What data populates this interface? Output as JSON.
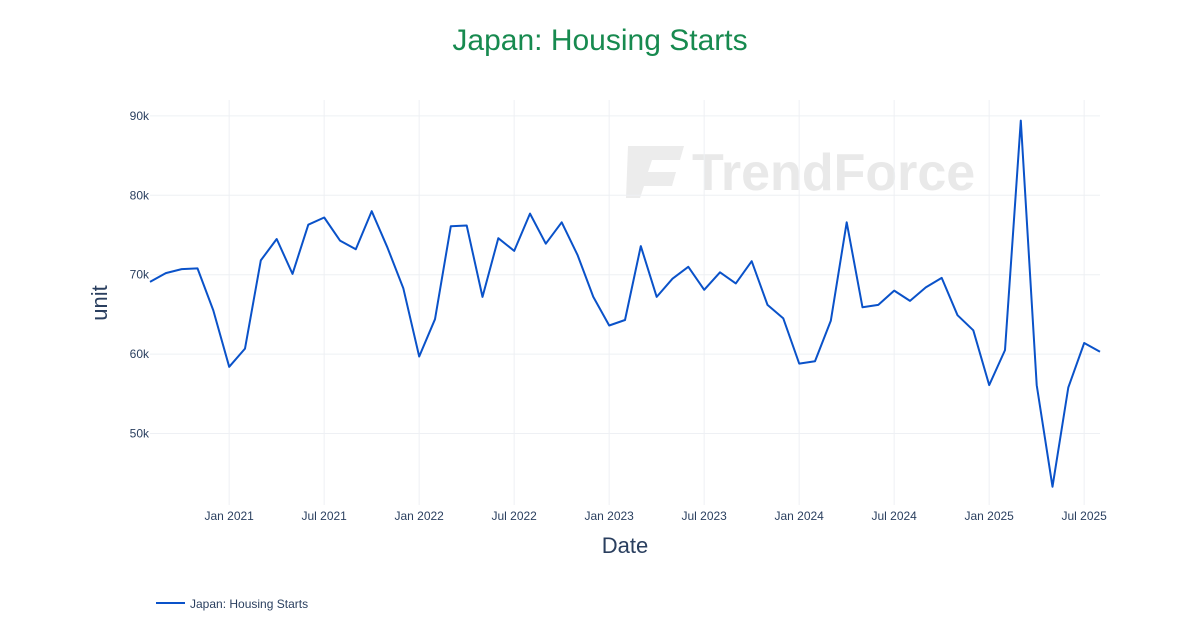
{
  "chart_data": {
    "type": "line",
    "title": "Japan: Housing Starts",
    "xlabel": "Date",
    "ylabel": "unit",
    "x_ticks": [
      "Jan 2021",
      "Jul 2021",
      "Jan 2022",
      "Jul 2022",
      "Jan 2023",
      "Jul 2023",
      "Jan 2024",
      "Jul 2024",
      "Jan 2025",
      "Jul 2025"
    ],
    "y_ticks": [
      {
        "value": 50000,
        "label": "50k"
      },
      {
        "value": 60000,
        "label": "60k"
      },
      {
        "value": 70000,
        "label": "70k"
      },
      {
        "value": 80000,
        "label": "80k"
      },
      {
        "value": 90000,
        "label": "90k"
      }
    ],
    "xlim": [
      "2020-08",
      "2025-08"
    ],
    "ylim": [
      41000,
      92000
    ],
    "grid": true,
    "legend_position": "bottom-left",
    "line_color": "#0a52c9",
    "watermark": "TrendForce",
    "series": [
      {
        "name": "Japan: Housing Starts",
        "x": [
          "2020-08",
          "2020-09",
          "2020-10",
          "2020-11",
          "2020-12",
          "2021-01",
          "2021-02",
          "2021-03",
          "2021-04",
          "2021-05",
          "2021-06",
          "2021-07",
          "2021-08",
          "2021-09",
          "2021-10",
          "2021-11",
          "2021-12",
          "2022-01",
          "2022-02",
          "2022-03",
          "2022-04",
          "2022-05",
          "2022-06",
          "2022-07",
          "2022-08",
          "2022-09",
          "2022-10",
          "2022-11",
          "2022-12",
          "2023-01",
          "2023-02",
          "2023-03",
          "2023-04",
          "2023-05",
          "2023-06",
          "2023-07",
          "2023-08",
          "2023-09",
          "2023-10",
          "2023-11",
          "2023-12",
          "2024-01",
          "2024-02",
          "2024-03",
          "2024-04",
          "2024-05",
          "2024-06",
          "2024-07",
          "2024-08",
          "2024-09",
          "2024-10",
          "2024-11",
          "2024-12",
          "2025-01",
          "2025-02",
          "2025-03",
          "2025-04",
          "2025-05",
          "2025-06",
          "2025-07",
          "2025-08"
        ],
        "values": [
          69100,
          70200,
          70700,
          70800,
          65500,
          58400,
          60700,
          71800,
          74500,
          70100,
          76300,
          77200,
          74300,
          73200,
          78000,
          73400,
          68300,
          59700,
          64400,
          76100,
          76200,
          67200,
          74600,
          73000,
          77700,
          73900,
          76600,
          72500,
          67200,
          63600,
          64300,
          73600,
          67200,
          69500,
          71000,
          68100,
          70300,
          68900,
          71700,
          66200,
          64500,
          58800,
          59100,
          64200,
          76600,
          65900,
          66200,
          68000,
          66700,
          68400,
          69600,
          64900,
          63000,
          56100,
          60500,
          89400,
          56100,
          43300,
          55800,
          61400,
          60300
        ]
      }
    ]
  }
}
